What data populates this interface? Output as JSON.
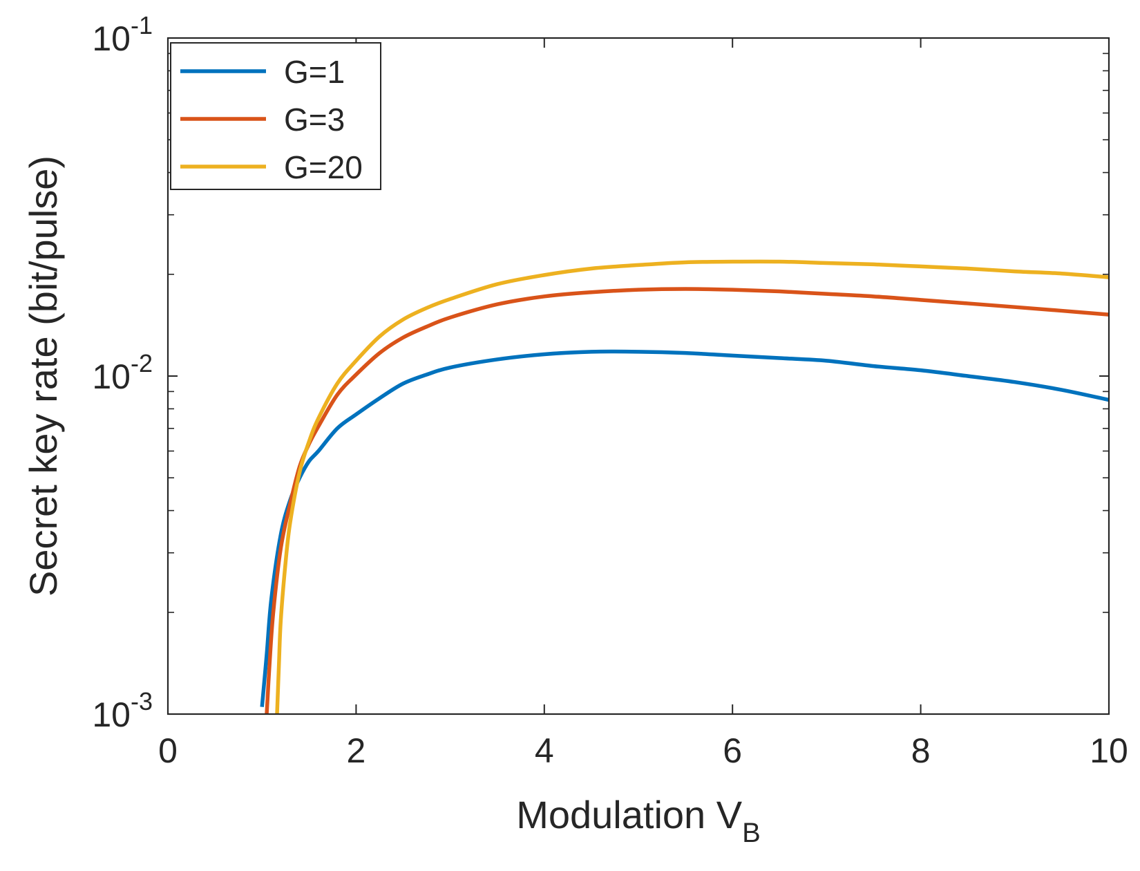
{
  "chart_data": {
    "type": "line",
    "title": "",
    "xlabel": "Modulation V",
    "xlabel_sub": "B",
    "ylabel": "Secret key rate (bit/pulse)",
    "xlim": [
      0,
      10
    ],
    "ylim": [
      0.001,
      0.1
    ],
    "yscale": "log",
    "xticks": [
      0,
      2,
      4,
      6,
      8,
      10
    ],
    "xtick_labels": [
      "0",
      "2",
      "4",
      "6",
      "8",
      "10"
    ],
    "yticks": [
      0.001,
      0.01,
      0.1
    ],
    "ytick_labels": [
      {
        "base": "10",
        "exp": "-3"
      },
      {
        "base": "10",
        "exp": "-2"
      },
      {
        "base": "10",
        "exp": "-1"
      }
    ],
    "grid": false,
    "legend_position": "top-left",
    "series": [
      {
        "name": "G=1",
        "color": "#0072BD",
        "x": [
          1.0,
          1.05,
          1.1,
          1.2,
          1.3,
          1.4,
          1.5,
          1.6,
          1.8,
          2.0,
          2.25,
          2.5,
          2.75,
          3.0,
          3.5,
          4.0,
          4.5,
          5.0,
          5.5,
          6.0,
          6.5,
          7.0,
          7.5,
          8.0,
          8.5,
          9.0,
          9.5,
          10.0
        ],
        "y": [
          0.00105,
          0.0015,
          0.0022,
          0.0034,
          0.0043,
          0.005,
          0.0056,
          0.006,
          0.007,
          0.0077,
          0.0086,
          0.0095,
          0.0101,
          0.0106,
          0.0112,
          0.0116,
          0.0118,
          0.0118,
          0.0117,
          0.0115,
          0.0113,
          0.0111,
          0.0107,
          0.0104,
          0.01,
          0.0096,
          0.0091,
          0.0085
        ]
      },
      {
        "name": "G=3",
        "color": "#D95319",
        "x": [
          1.05,
          1.08,
          1.12,
          1.2,
          1.3,
          1.4,
          1.5,
          1.6,
          1.8,
          2.0,
          2.25,
          2.5,
          2.75,
          3.0,
          3.5,
          4.0,
          4.5,
          5.0,
          5.5,
          6.0,
          6.5,
          7.0,
          7.5,
          8.0,
          8.5,
          9.0,
          9.5,
          10.0
        ],
        "y": [
          0.001,
          0.0014,
          0.002,
          0.0031,
          0.0042,
          0.0054,
          0.0063,
          0.0071,
          0.0088,
          0.0101,
          0.0117,
          0.013,
          0.014,
          0.0149,
          0.0163,
          0.0172,
          0.0177,
          0.018,
          0.0181,
          0.018,
          0.0178,
          0.0175,
          0.0172,
          0.0168,
          0.0164,
          0.016,
          0.0156,
          0.0152
        ]
      },
      {
        "name": "G=20",
        "color": "#EDB120",
        "x": [
          1.16,
          1.18,
          1.2,
          1.25,
          1.3,
          1.4,
          1.5,
          1.6,
          1.8,
          2.0,
          2.25,
          2.5,
          2.75,
          3.0,
          3.5,
          4.0,
          4.5,
          5.0,
          5.5,
          6.0,
          6.5,
          7.0,
          7.5,
          8.0,
          8.5,
          9.0,
          9.5,
          10.0
        ],
        "y": [
          0.001,
          0.0014,
          0.0019,
          0.0028,
          0.0037,
          0.0052,
          0.0064,
          0.0075,
          0.0095,
          0.0111,
          0.0131,
          0.0147,
          0.0159,
          0.0169,
          0.0187,
          0.0199,
          0.0208,
          0.0213,
          0.0217,
          0.0218,
          0.0218,
          0.0216,
          0.0214,
          0.0211,
          0.0208,
          0.0204,
          0.0201,
          0.0196
        ]
      }
    ]
  }
}
